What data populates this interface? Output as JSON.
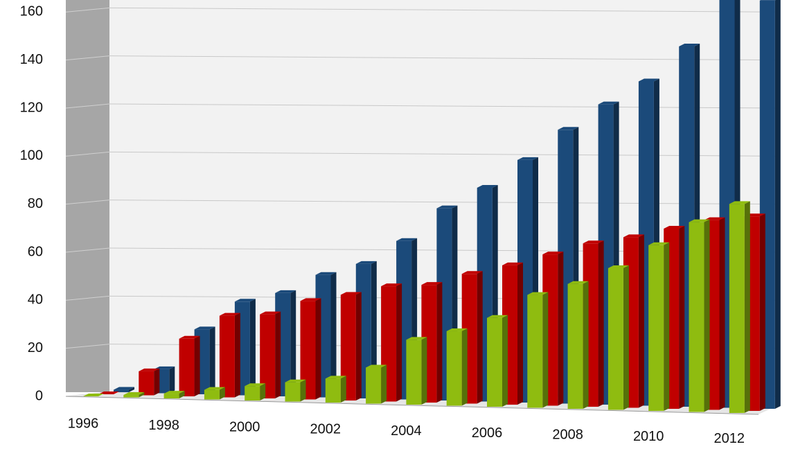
{
  "chart_data": {
    "type": "bar",
    "categories": [
      "1996",
      null,
      "1998",
      null,
      "2000",
      null,
      "2002",
      null,
      "2004",
      null,
      "2006",
      null,
      "2008",
      null,
      "2010",
      null,
      "2012"
    ],
    "series": [
      {
        "color": "#1b4a7a",
        "values": [
          1,
          10,
          27,
          39,
          43,
          51,
          56,
          66,
          80,
          89,
          101,
          114,
          125,
          135,
          150,
          170,
          170
        ]
      },
      {
        "color": "#c00000",
        "values": [
          0,
          10,
          24,
          34,
          35,
          41,
          44,
          48,
          49,
          54,
          58,
          63,
          68,
          71,
          75,
          79,
          81
        ]
      },
      {
        "color": "#8fbc10",
        "values": [
          0,
          1,
          2,
          4,
          6,
          8,
          10,
          15,
          27,
          31,
          37,
          47,
          52,
          59,
          69,
          79,
          87
        ]
      }
    ],
    "ylim": [
      0,
      165
    ],
    "yticks": [
      0,
      20,
      40,
      60,
      80,
      100,
      120,
      140,
      160
    ],
    "grid": true
  }
}
